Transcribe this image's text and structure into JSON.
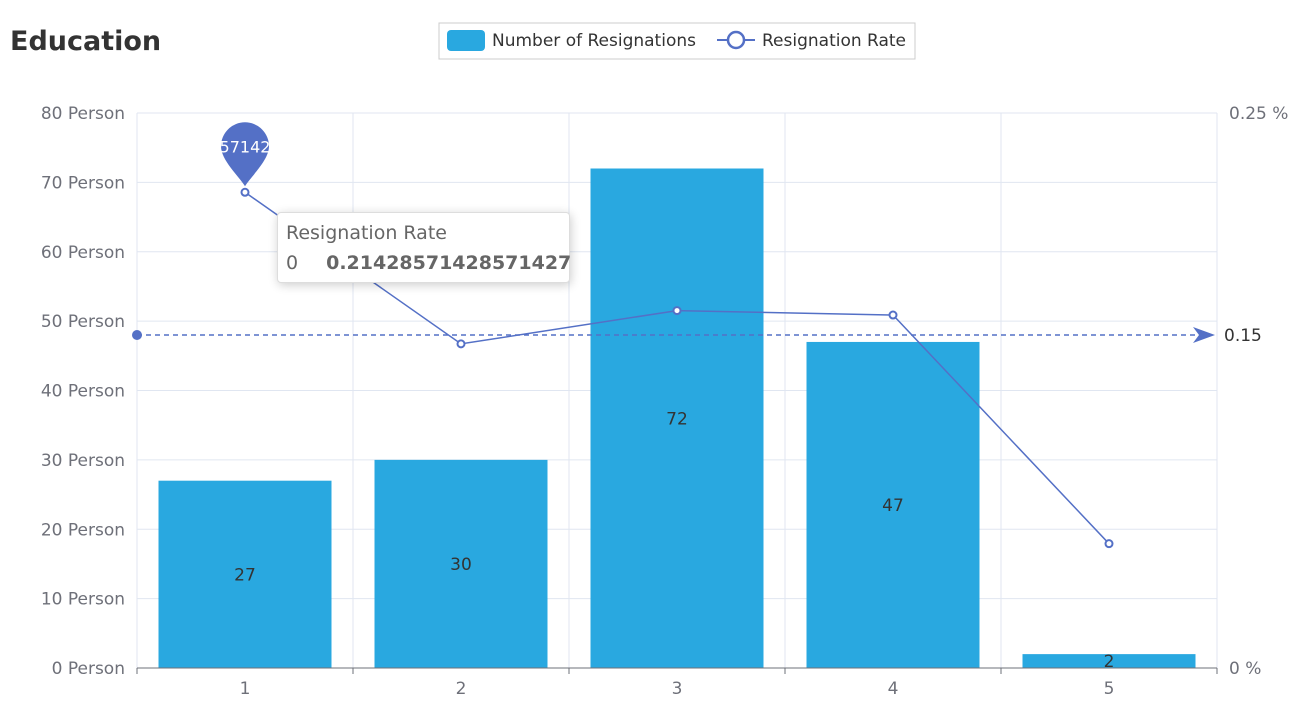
{
  "chart_data": {
    "type": "bar",
    "title": "Education",
    "categories": [
      "1",
      "2",
      "3",
      "4",
      "5"
    ],
    "series": [
      {
        "name": "Number of Resignations",
        "type": "bar",
        "axis": "left",
        "color": "#29a8e0",
        "values": [
          27,
          30,
          72,
          47,
          2
        ],
        "labels": [
          "27",
          "30",
          "72",
          "47",
          "2"
        ]
      },
      {
        "name": "Resignation Rate",
        "type": "line",
        "axis": "right",
        "color": "#5470c6",
        "values": [
          0.21428571428571427,
          0.146,
          0.161,
          0.159,
          0.056
        ]
      }
    ],
    "y_left": {
      "min": 0,
      "max": 80,
      "ticks": [
        0,
        10,
        20,
        30,
        40,
        50,
        60,
        70,
        80
      ],
      "tick_labels": [
        "0 Person",
        "10 Person",
        "20 Person",
        "30 Person",
        "40 Person",
        "50 Person",
        "60 Person",
        "70 Person",
        "80 Person"
      ]
    },
    "y_right": {
      "min": 0,
      "max": 0.25,
      "tick_labels": [
        "0 %",
        "0.25 %"
      ]
    },
    "mark_point": {
      "series": "Resignation Rate",
      "category_index": 0,
      "text": "57142"
    },
    "mark_line": {
      "series": "Resignation Rate",
      "value": 0.15,
      "label": "0.15"
    },
    "legend": {
      "position": "top-center",
      "items": [
        "Number of Resignations",
        "Resignation Rate"
      ]
    },
    "grid": true
  },
  "tooltip": {
    "title": "Resignation Rate",
    "name": "0",
    "value": "0.21428571428571427"
  }
}
